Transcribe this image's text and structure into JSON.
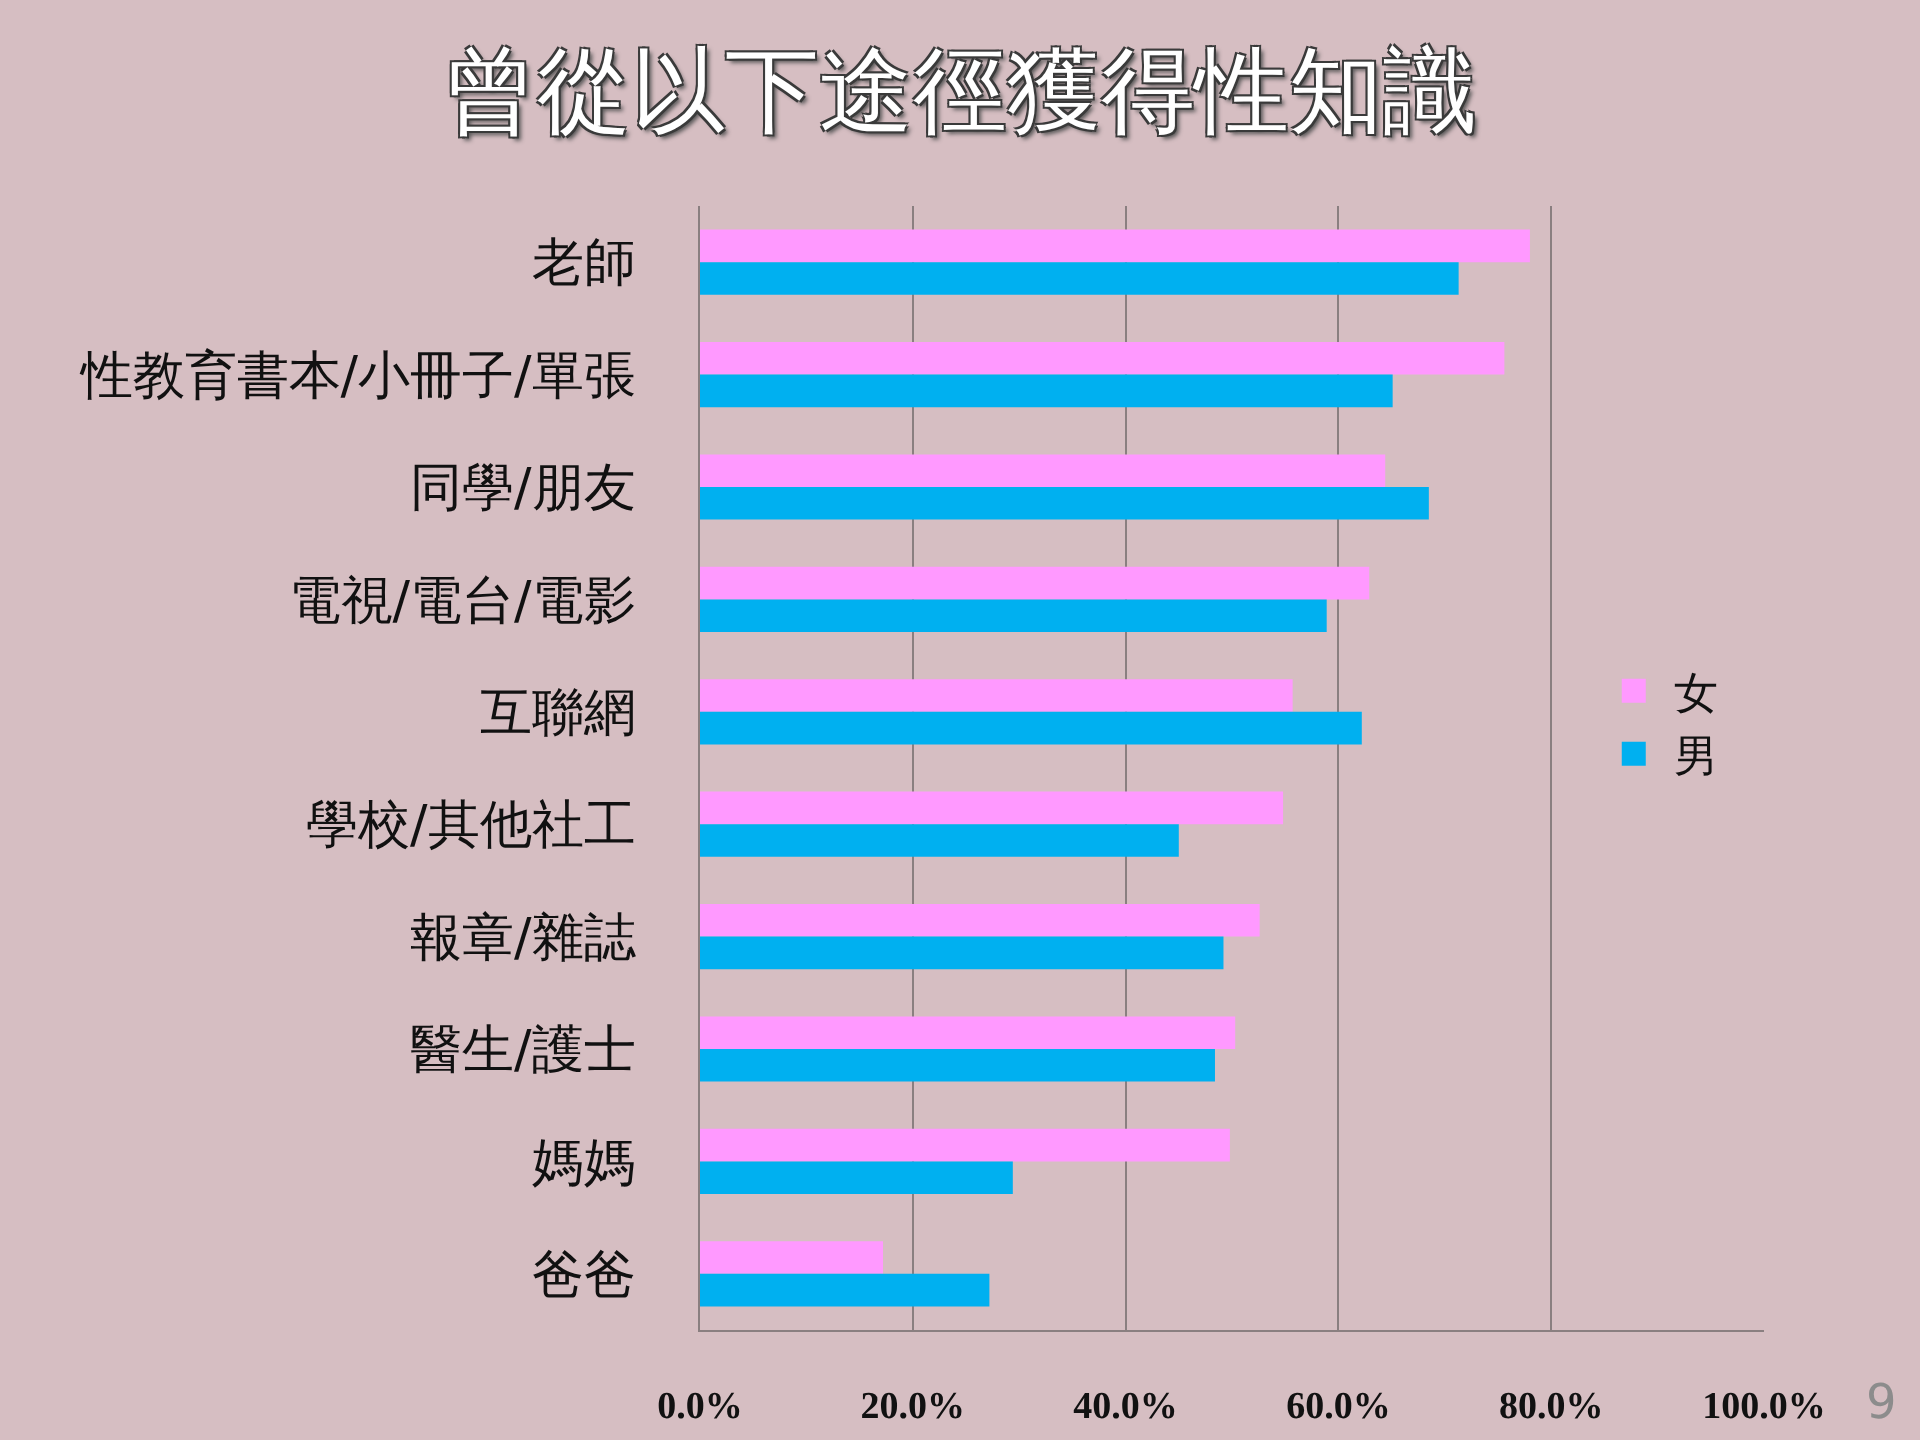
{
  "chart_data": {
    "type": "bar",
    "orientation": "horizontal",
    "title": "曾從以下途徑獲得性知識",
    "categories": [
      "老師",
      "性教育書本/小冊子/單張",
      "同學/朋友",
      "電視/電台/電影",
      "互聯網",
      "學校/其他社工",
      "報章/雜誌",
      "醫生/護士",
      "媽媽",
      "爸爸"
    ],
    "series": [
      {
        "name": "女",
        "color": "#ff99ff",
        "values": [
          78.0,
          75.6,
          64.4,
          62.9,
          55.7,
          54.8,
          52.6,
          50.3,
          49.8,
          17.2
        ]
      },
      {
        "name": "男",
        "color": "#00b0f0",
        "values": [
          71.3,
          65.1,
          68.5,
          58.9,
          62.2,
          45.0,
          49.2,
          48.4,
          29.4,
          27.2
        ]
      }
    ],
    "xlim": [
      0,
      100
    ],
    "xticks": [
      {
        "value": 0,
        "label": "0.0%"
      },
      {
        "value": 20,
        "label": "20.0%"
      },
      {
        "value": 40,
        "label": "40.0%"
      },
      {
        "value": 60,
        "label": "60.0%"
      },
      {
        "value": 80,
        "label": "80.0%"
      },
      {
        "value": 100,
        "label": "100.0%"
      }
    ],
    "grid": "x",
    "legend": "right",
    "annotations": [
      "9"
    ]
  }
}
